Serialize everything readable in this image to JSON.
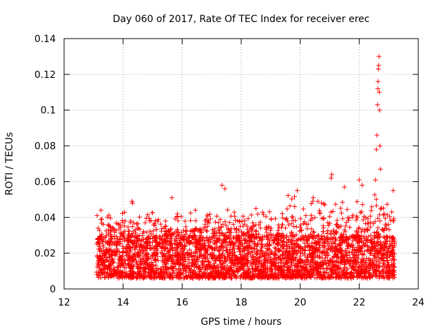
{
  "chart_data": {
    "type": "scatter",
    "title": "Day 060 of 2017, Rate Of TEC Index for receiver erec",
    "xlabel": "GPS time / hours",
    "ylabel": "ROTI / TECUs",
    "xlim": [
      12,
      24
    ],
    "ylim": [
      0,
      0.14
    ],
    "xticks": [
      12,
      14,
      16,
      18,
      20,
      22,
      24
    ],
    "xtick_labels": [
      "12",
      "14",
      "16",
      "18",
      "20",
      "22",
      "24"
    ],
    "yticks": [
      0,
      0.02,
      0.04,
      0.06,
      0.08,
      0.1,
      0.12,
      0.14
    ],
    "ytick_labels": [
      "0",
      "0.02",
      "0.04",
      "0.06",
      "0.08",
      "0.1",
      "0.12",
      "0.14"
    ],
    "grid": true,
    "marker": "+",
    "color": "#ff0000",
    "series": [
      {
        "name": "ROTI",
        "sample_points": [
          [
            13.25,
            0.044
          ],
          [
            13.28,
            0.039
          ],
          [
            14.3,
            0.049
          ],
          [
            14.32,
            0.048
          ],
          [
            15.65,
            0.051
          ],
          [
            16.45,
            0.044
          ],
          [
            17.35,
            0.058
          ],
          [
            17.45,
            0.056
          ],
          [
            18.5,
            0.045
          ],
          [
            19.9,
            0.055
          ],
          [
            20.6,
            0.049
          ],
          [
            21.05,
            0.062
          ],
          [
            21.07,
            0.064
          ],
          [
            21.5,
            0.057
          ],
          [
            22.0,
            0.061
          ],
          [
            22.1,
            0.058
          ],
          [
            22.55,
            0.061
          ],
          [
            22.58,
            0.078
          ],
          [
            22.6,
            0.086
          ],
          [
            22.62,
            0.103
          ],
          [
            22.63,
            0.112
          ],
          [
            22.64,
            0.116
          ],
          [
            22.65,
            0.123
          ],
          [
            22.66,
            0.125
          ],
          [
            22.67,
            0.13
          ],
          [
            22.68,
            0.11
          ],
          [
            22.69,
            0.1
          ],
          [
            22.7,
            0.08
          ],
          [
            22.72,
            0.067
          ],
          [
            23.15,
            0.055
          ]
        ],
        "dense_band": {
          "x_range": [
            13.1,
            23.2
          ],
          "typical_y": [
            0.006,
            0.03
          ]
        }
      }
    ]
  }
}
